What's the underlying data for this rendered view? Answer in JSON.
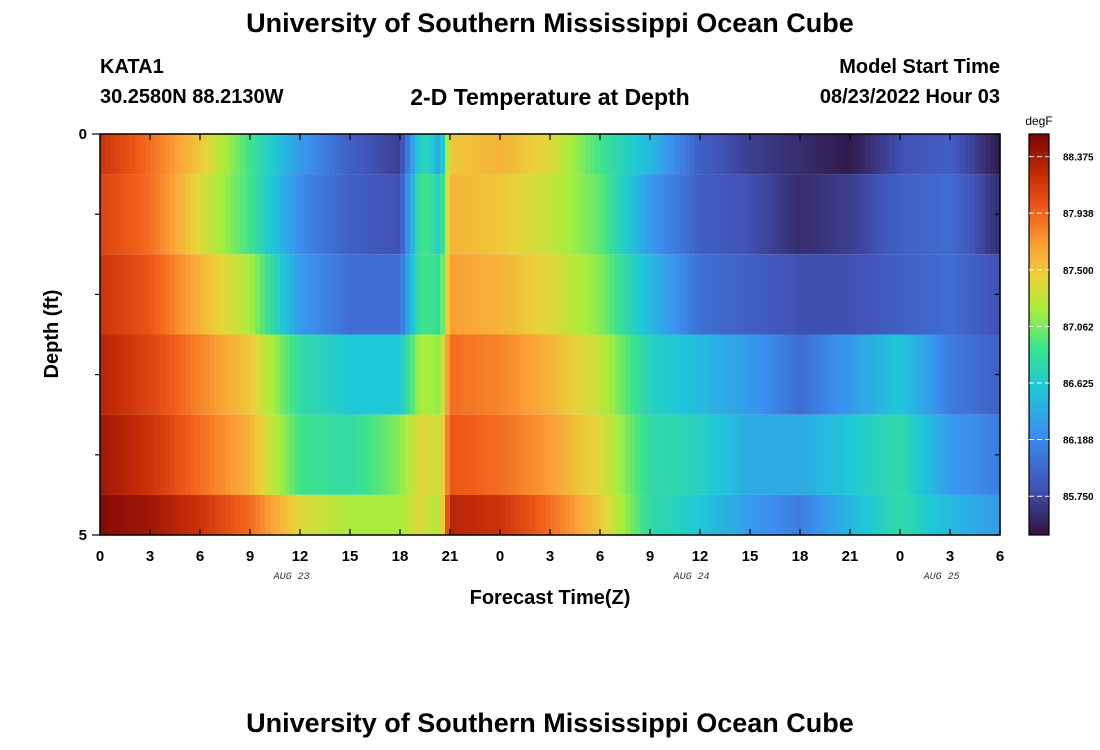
{
  "page": {
    "title": "University of Southern Mississippi Ocean Cube",
    "title_repeat": "University of Southern Mississippi Ocean Cube",
    "station": "KATA1",
    "coords": "30.2580N  88.2130W",
    "product": "2-D Temperature at Depth",
    "model_start_label": "Model Start Time",
    "model_start_value": "08/23/2022 Hour 03"
  },
  "chart_data": {
    "type": "heatmap",
    "title": "2-D Temperature at Depth",
    "xlabel": "Forecast Time(Z)",
    "ylabel": "Depth (ft)",
    "x_range_hours": [
      0,
      54
    ],
    "y_range_ft": [
      0,
      5
    ],
    "x_ticks": [
      "0",
      "3",
      "6",
      "9",
      "12",
      "15",
      "18",
      "21",
      "0",
      "3",
      "6",
      "9",
      "12",
      "15",
      "18",
      "21",
      "0",
      "3",
      "6"
    ],
    "y_ticks": [
      "0",
      "5"
    ],
    "date_labels": [
      {
        "text": "AUG 23",
        "hour": 11.5
      },
      {
        "text": "AUG 24",
        "hour": 35.5
      },
      {
        "text": "AUG 25",
        "hour": 50.5
      }
    ],
    "colorbar": {
      "unit": "degF",
      "min": 85.45,
      "max": 88.55,
      "labels": [
        "88.375",
        "87.938",
        "87.500",
        "87.062",
        "86.625",
        "86.188",
        "85.750"
      ]
    },
    "depth_bins_ft": [
      [
        0,
        0.5
      ],
      [
        0.5,
        1.5
      ],
      [
        1.5,
        2.5
      ],
      [
        2.5,
        3.5
      ],
      [
        3.5,
        4.5
      ],
      [
        4.5,
        5
      ]
    ],
    "time_hours": [
      0,
      3,
      6,
      9,
      12,
      15,
      18,
      19.2,
      19.8,
      20.4,
      21,
      24,
      27,
      30,
      33,
      36,
      39,
      42,
      45,
      48,
      51,
      54
    ],
    "temperature_degF": [
      [
        88.2,
        87.9,
        87.5,
        86.9,
        86.3,
        85.9,
        85.7,
        86.7,
        86.7,
        86.3,
        87.5,
        87.6,
        87.4,
        86.9,
        86.5,
        85.9,
        85.7,
        85.6,
        85.5,
        85.8,
        85.9,
        85.5
      ],
      [
        88.1,
        87.9,
        87.4,
        86.9,
        86.2,
        85.9,
        85.8,
        86.9,
        86.9,
        86.6,
        87.6,
        87.5,
        87.3,
        87.0,
        86.3,
        85.9,
        85.8,
        85.6,
        85.7,
        85.9,
        86.0,
        85.6
      ],
      [
        88.2,
        88.0,
        87.6,
        87.2,
        86.3,
        86.0,
        86.0,
        86.9,
        86.9,
        86.8,
        87.7,
        87.6,
        87.4,
        87.1,
        86.5,
        86.0,
        85.9,
        85.8,
        85.8,
        85.9,
        86.0,
        85.8
      ],
      [
        88.3,
        88.1,
        87.8,
        87.5,
        86.8,
        86.6,
        86.6,
        87.2,
        87.2,
        87.1,
        87.9,
        87.8,
        87.6,
        87.3,
        86.7,
        86.5,
        86.3,
        86.0,
        86.3,
        86.6,
        86.1,
        85.9
      ],
      [
        88.4,
        88.2,
        87.9,
        87.6,
        86.9,
        86.8,
        87.1,
        87.4,
        87.4,
        87.3,
        88.0,
        87.9,
        87.7,
        87.4,
        86.8,
        86.7,
        86.4,
        86.4,
        86.6,
        86.8,
        86.3,
        86.1
      ],
      [
        88.5,
        88.4,
        88.2,
        87.9,
        87.4,
        87.2,
        87.2,
        87.4,
        87.3,
        87.2,
        88.3,
        88.2,
        87.9,
        87.5,
        86.8,
        86.6,
        86.3,
        86.1,
        86.5,
        86.8,
        86.5,
        86.3
      ]
    ]
  }
}
